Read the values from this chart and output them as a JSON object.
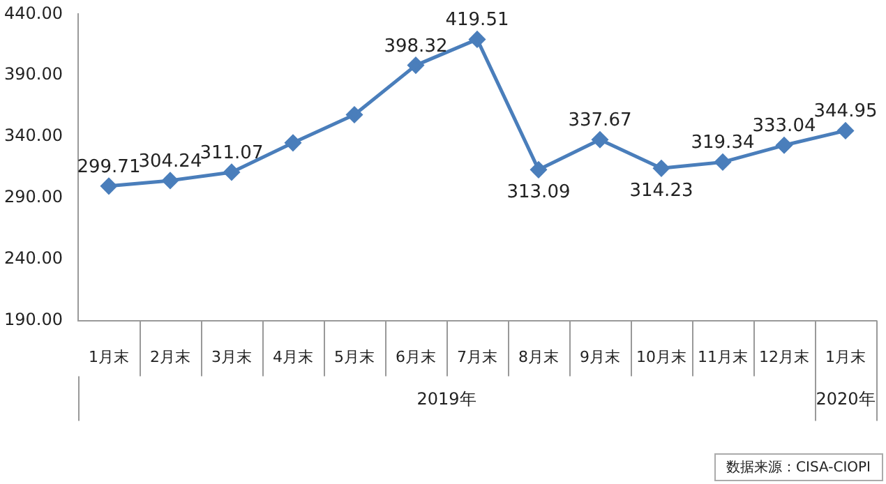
{
  "chart_data": {
    "type": "line",
    "categories": [
      "1月末",
      "2月末",
      "3月末",
      "4月末",
      "5月末",
      "6月末",
      "7月末",
      "8月末",
      "9月末",
      "10月末",
      "11月末",
      "12月末",
      "1月末"
    ],
    "series": [
      {
        "color": "#4a7ebb",
        "values": [
          299.71,
          304.24,
          311.07,
          335,
          358,
          398.32,
          419.51,
          313.09,
          337.67,
          314.23,
          319.34,
          333.04,
          344.95
        ],
        "value_labels": [
          "299.71",
          "304.24",
          "311.07",
          null,
          null,
          "398.32",
          "419.51",
          "313.09",
          "337.67",
          "314.23",
          "319.34",
          "333.04",
          "344.95"
        ]
      }
    ],
    "ylim": [
      190,
      440
    ],
    "yticks": [
      {
        "value": 190,
        "label": "190.00"
      },
      {
        "value": 240,
        "label": "240.00"
      },
      {
        "value": 290,
        "label": "290.00"
      },
      {
        "value": 340,
        "label": "340.00"
      },
      {
        "value": 390,
        "label": "390.00"
      },
      {
        "value": 440,
        "label": "440.00"
      }
    ],
    "grid": false,
    "legend": false,
    "marker": "diamond",
    "line_style": "solid",
    "annotations": [
      "2019年",
      "2020年",
      "数据来源：CISA-CIOPI"
    ]
  }
}
